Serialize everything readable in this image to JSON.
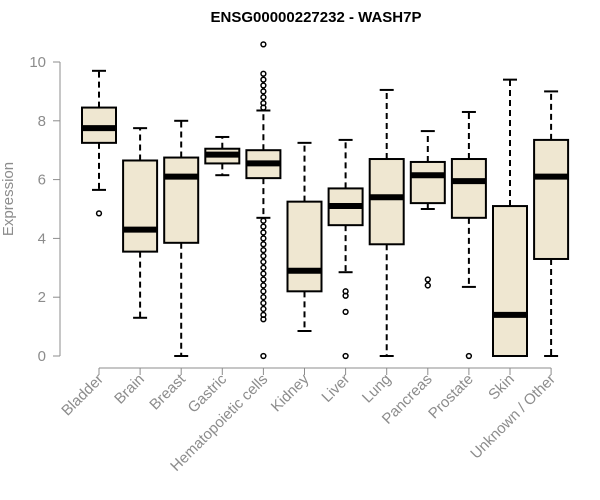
{
  "chart_data": {
    "type": "boxplot",
    "title": "ENSG00000227232 - WASH7P",
    "xlabel": "",
    "ylabel": "Expression",
    "ylim": [
      0,
      10.5
    ],
    "yticks": [
      0,
      2,
      4,
      6,
      8,
      10
    ],
    "box_color": "#efe7d1",
    "categories": [
      "Bladder",
      "Brain",
      "Breast",
      "Gastric",
      "Hematopoietic cells",
      "Kidney",
      "Liver",
      "Lung",
      "Pancreas",
      "Prostate",
      "Skin",
      "Unknown / Other"
    ],
    "boxes": [
      {
        "name": "Bladder",
        "whisker_low": 5.65,
        "q1": 7.25,
        "median": 7.75,
        "q3": 8.45,
        "whisker_high": 9.7,
        "outliers": [
          4.85
        ]
      },
      {
        "name": "Brain",
        "whisker_low": 1.3,
        "q1": 3.55,
        "median": 4.3,
        "q3": 6.65,
        "whisker_high": 7.75,
        "outliers": []
      },
      {
        "name": "Breast",
        "whisker_low": 0.0,
        "q1": 3.85,
        "median": 6.1,
        "q3": 6.75,
        "whisker_high": 8.0,
        "outliers": []
      },
      {
        "name": "Gastric",
        "whisker_low": 6.15,
        "q1": 6.55,
        "median": 6.85,
        "q3": 7.05,
        "whisker_high": 7.45,
        "outliers": []
      },
      {
        "name": "Hematopoietic cells",
        "whisker_low": 4.7,
        "q1": 6.05,
        "median": 6.55,
        "q3": 7.0,
        "whisker_high": 8.35,
        "outliers": [
          10.6,
          9.6,
          9.4,
          9.2,
          9.0,
          8.8,
          8.6,
          8.45,
          4.6,
          4.4,
          4.2,
          4.0,
          3.8,
          3.6,
          3.4,
          3.2,
          3.0,
          2.8,
          2.6,
          2.4,
          2.2,
          2.0,
          1.8,
          1.6,
          1.4,
          1.25,
          0.0
        ]
      },
      {
        "name": "Kidney",
        "whisker_low": 0.85,
        "q1": 2.2,
        "median": 2.9,
        "q3": 5.25,
        "whisker_high": 7.25,
        "outliers": []
      },
      {
        "name": "Liver",
        "whisker_low": 2.85,
        "q1": 4.45,
        "median": 5.1,
        "q3": 5.7,
        "whisker_high": 7.35,
        "outliers": [
          2.2,
          2.05,
          1.5,
          0.0
        ]
      },
      {
        "name": "Lung",
        "whisker_low": 0.0,
        "q1": 3.8,
        "median": 5.4,
        "q3": 6.7,
        "whisker_high": 9.05,
        "outliers": []
      },
      {
        "name": "Pancreas",
        "whisker_low": 5.0,
        "q1": 5.2,
        "median": 6.15,
        "q3": 6.6,
        "whisker_high": 7.65,
        "outliers": [
          2.6,
          2.4
        ]
      },
      {
        "name": "Prostate",
        "whisker_low": 2.35,
        "q1": 4.7,
        "median": 5.95,
        "q3": 6.7,
        "whisker_high": 8.3,
        "outliers": [
          0.0
        ]
      },
      {
        "name": "Skin",
        "whisker_low": 0.0,
        "q1": 0.0,
        "median": 1.4,
        "q3": 5.1,
        "whisker_high": 9.4,
        "outliers": []
      },
      {
        "name": "Unknown / Other",
        "whisker_low": 0.0,
        "q1": 3.3,
        "median": 6.1,
        "q3": 7.35,
        "whisker_high": 9.0,
        "outliers": []
      }
    ]
  }
}
